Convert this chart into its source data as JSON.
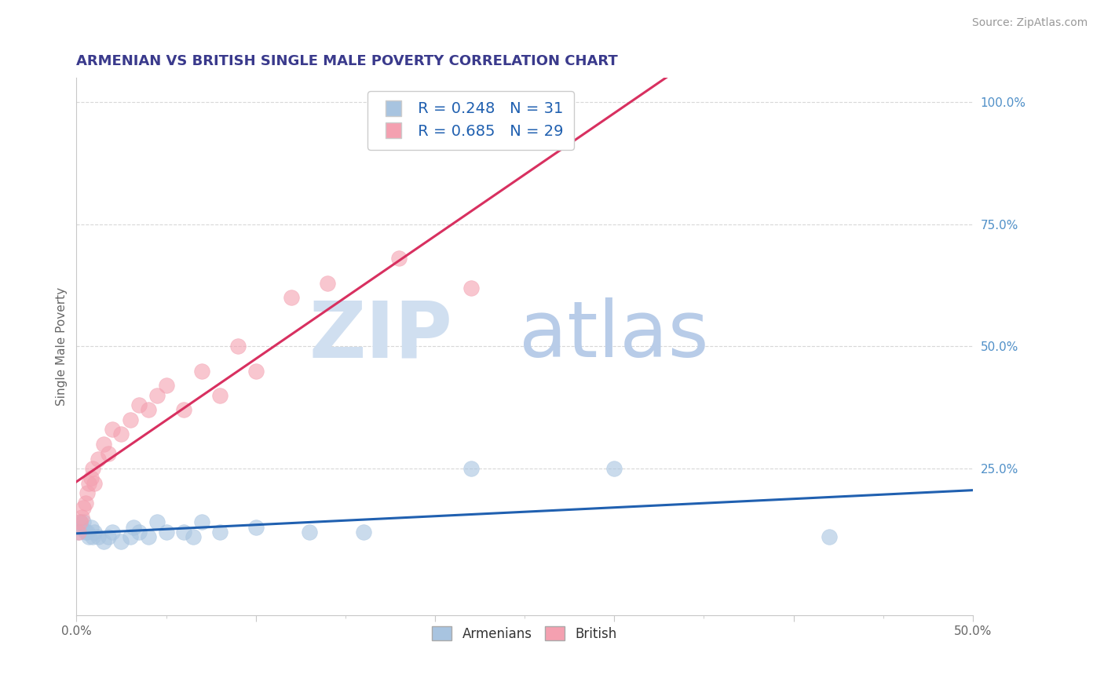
{
  "title": "ARMENIAN VS BRITISH SINGLE MALE POVERTY CORRELATION CHART",
  "source": "Source: ZipAtlas.com",
  "ylabel": "Single Male Poverty",
  "legend_armenians_R": "0.248",
  "legend_armenians_N": "31",
  "legend_british_R": "0.685",
  "legend_british_N": "29",
  "armenian_color": "#a8c4e0",
  "british_color": "#f4a0b0",
  "armenian_line_color": "#2060b0",
  "british_line_color": "#d83060",
  "title_color": "#3a3a8c",
  "zip_color": "#d0dff0",
  "atlas_color": "#b8cce8",
  "axis_color": "#c8c8c8",
  "grid_color": "#d8d8d8",
  "right_tick_color": "#5090c8",
  "legend_text_color": "#2060b0",
  "armenians_x": [
    0.001,
    0.002,
    0.003,
    0.004,
    0.005,
    0.006,
    0.007,
    0.008,
    0.009,
    0.01,
    0.012,
    0.015,
    0.018,
    0.02,
    0.025,
    0.03,
    0.032,
    0.035,
    0.04,
    0.045,
    0.05,
    0.06,
    0.065,
    0.07,
    0.08,
    0.1,
    0.13,
    0.16,
    0.22,
    0.3,
    0.42
  ],
  "armenians_y": [
    0.12,
    0.14,
    0.13,
    0.14,
    0.12,
    0.12,
    0.11,
    0.13,
    0.11,
    0.12,
    0.11,
    0.1,
    0.11,
    0.12,
    0.1,
    0.11,
    0.13,
    0.12,
    0.11,
    0.14,
    0.12,
    0.12,
    0.11,
    0.14,
    0.12,
    0.13,
    0.12,
    0.12,
    0.25,
    0.25,
    0.11
  ],
  "british_x": [
    0.001,
    0.002,
    0.003,
    0.004,
    0.005,
    0.006,
    0.007,
    0.008,
    0.009,
    0.01,
    0.012,
    0.015,
    0.018,
    0.02,
    0.025,
    0.03,
    0.035,
    0.04,
    0.045,
    0.05,
    0.06,
    0.07,
    0.08,
    0.09,
    0.1,
    0.12,
    0.14,
    0.18,
    0.22
  ],
  "british_y": [
    0.12,
    0.14,
    0.15,
    0.17,
    0.18,
    0.2,
    0.22,
    0.23,
    0.25,
    0.22,
    0.27,
    0.3,
    0.28,
    0.33,
    0.32,
    0.35,
    0.38,
    0.37,
    0.4,
    0.42,
    0.37,
    0.45,
    0.4,
    0.5,
    0.45,
    0.6,
    0.63,
    0.68,
    0.62
  ],
  "xlim": [
    0.0,
    0.5
  ],
  "ylim": [
    -0.05,
    1.05
  ],
  "background_color": "#ffffff"
}
